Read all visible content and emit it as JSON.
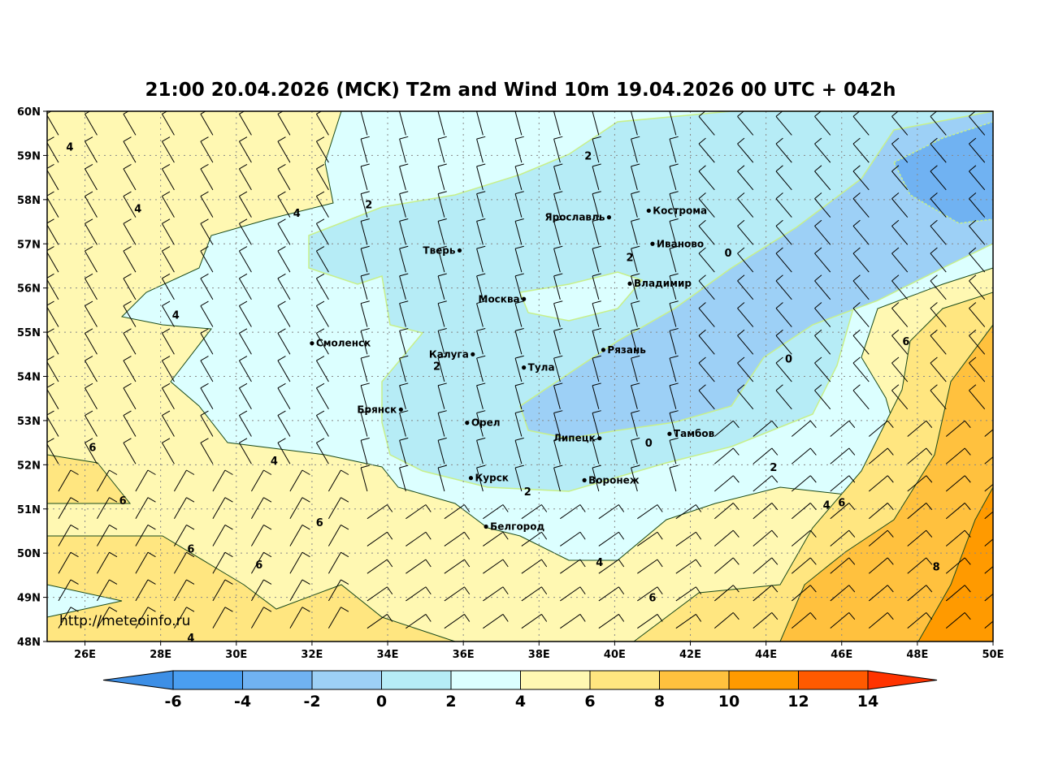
{
  "title": "21:00 20.04.2026 (MCK) T2m and Wind 10m 19.04.2026 00 UTC + 042h",
  "watermark": "http://meteoinfo.ru",
  "map": {
    "lon_range": [
      25,
      50
    ],
    "lat_range": [
      48,
      60
    ],
    "lon_ticks": [
      "26E",
      "28E",
      "30E",
      "32E",
      "34E",
      "36E",
      "38E",
      "40E",
      "42E",
      "44E",
      "46E",
      "48E",
      "50E"
    ],
    "lat_ticks": [
      "48N",
      "49N",
      "50N",
      "51N",
      "52N",
      "53N",
      "54N",
      "55N",
      "56N",
      "57N",
      "58N",
      "59N",
      "60N"
    ],
    "gridlines": "dotted",
    "cities": [
      {
        "name": "Ярославль",
        "lon": 39.85,
        "lat": 57.6,
        "label_side": "left"
      },
      {
        "name": "Кострома",
        "lon": 40.9,
        "lat": 57.75,
        "label_side": "right"
      },
      {
        "name": "Тверь",
        "lon": 35.9,
        "lat": 56.85,
        "label_side": "left"
      },
      {
        "name": "Иваново",
        "lon": 41.0,
        "lat": 57.0,
        "label_side": "right"
      },
      {
        "name": "Владимир",
        "lon": 40.4,
        "lat": 56.1,
        "label_side": "right"
      },
      {
        "name": "Москва",
        "lon": 37.6,
        "lat": 55.75,
        "label_side": "left"
      },
      {
        "name": "Смоленск",
        "lon": 32.0,
        "lat": 54.75,
        "label_side": "right"
      },
      {
        "name": "Калуга",
        "lon": 36.25,
        "lat": 54.5,
        "label_side": "left"
      },
      {
        "name": "Рязань",
        "lon": 39.7,
        "lat": 54.6,
        "label_side": "right"
      },
      {
        "name": "Тула",
        "lon": 37.6,
        "lat": 54.2,
        "label_side": "right"
      },
      {
        "name": "Брянск",
        "lon": 34.35,
        "lat": 53.25,
        "label_side": "left"
      },
      {
        "name": "Орел",
        "lon": 36.1,
        "lat": 52.95,
        "label_side": "right"
      },
      {
        "name": "Липецк",
        "lon": 39.6,
        "lat": 52.6,
        "label_side": "left"
      },
      {
        "name": "Тамбов",
        "lon": 41.45,
        "lat": 52.7,
        "label_side": "right"
      },
      {
        "name": "Курск",
        "lon": 36.2,
        "lat": 51.7,
        "label_side": "right"
      },
      {
        "name": "Воронеж",
        "lon": 39.2,
        "lat": 51.65,
        "label_side": "right"
      },
      {
        "name": "Белгород",
        "lon": 36.6,
        "lat": 50.6,
        "label_side": "right"
      }
    ],
    "contour_labels": [
      {
        "v": "4",
        "lon": 25.6,
        "lat": 59.2
      },
      {
        "v": "2",
        "lon": 39.3,
        "lat": 59.0
      },
      {
        "v": "4",
        "lon": 27.4,
        "lat": 57.8
      },
      {
        "v": "4",
        "lon": 31.6,
        "lat": 57.7
      },
      {
        "v": "2",
        "lon": 33.5,
        "lat": 57.9
      },
      {
        "v": "2",
        "lon": 40.4,
        "lat": 56.7
      },
      {
        "v": "0",
        "lon": 43.0,
        "lat": 56.8
      },
      {
        "v": "4",
        "lon": 28.4,
        "lat": 55.4
      },
      {
        "v": "2",
        "lon": 35.3,
        "lat": 54.5
      },
      {
        "v": "0",
        "lon": 44.6,
        "lat": 54.4
      },
      {
        "v": "6",
        "lon": 47.7,
        "lat": 54.8
      },
      {
        "v": "0",
        "lon": 40.9,
        "lat": 52.5
      },
      {
        "v": "6",
        "lon": 26.2,
        "lat": 52.4
      },
      {
        "v": "4",
        "lon": 31.0,
        "lat": 52.1
      },
      {
        "v": "2",
        "lon": 44.2,
        "lat": 51.95
      },
      {
        "v": "2",
        "lon": 37.7,
        "lat": 51.4
      },
      {
        "v": "6",
        "lon": 27.0,
        "lat": 51.2
      },
      {
        "v": "4",
        "lon": 45.6,
        "lat": 51.1
      },
      {
        "v": "6",
        "lon": 46.0,
        "lat": 51.15
      },
      {
        "v": "6",
        "lon": 32.2,
        "lat": 50.7
      },
      {
        "v": "6",
        "lon": 28.8,
        "lat": 50.1
      },
      {
        "v": "6",
        "lon": 30.6,
        "lat": 49.75
      },
      {
        "v": "4",
        "lon": 39.6,
        "lat": 49.8
      },
      {
        "v": "8",
        "lon": 48.5,
        "lat": 49.7
      },
      {
        "v": "6",
        "lon": 41.0,
        "lat": 49.0
      },
      {
        "v": "4",
        "lon": 28.8,
        "lat": 48.35
      }
    ]
  },
  "colorbar": {
    "labels": [
      "-6",
      "-4",
      "-2",
      "0",
      "2",
      "4",
      "6",
      "8",
      "10",
      "12",
      "14"
    ],
    "colors": [
      "#4a9ef0",
      "#70b2f2",
      "#9dd0f6",
      "#b6ecf6",
      "#dcffff",
      "#fff8b2",
      "#ffe680",
      "#ffc13e",
      "#ff9a00",
      "#ff5a00"
    ],
    "under_color": "#3d8fe6",
    "over_color": "#ff3300"
  }
}
